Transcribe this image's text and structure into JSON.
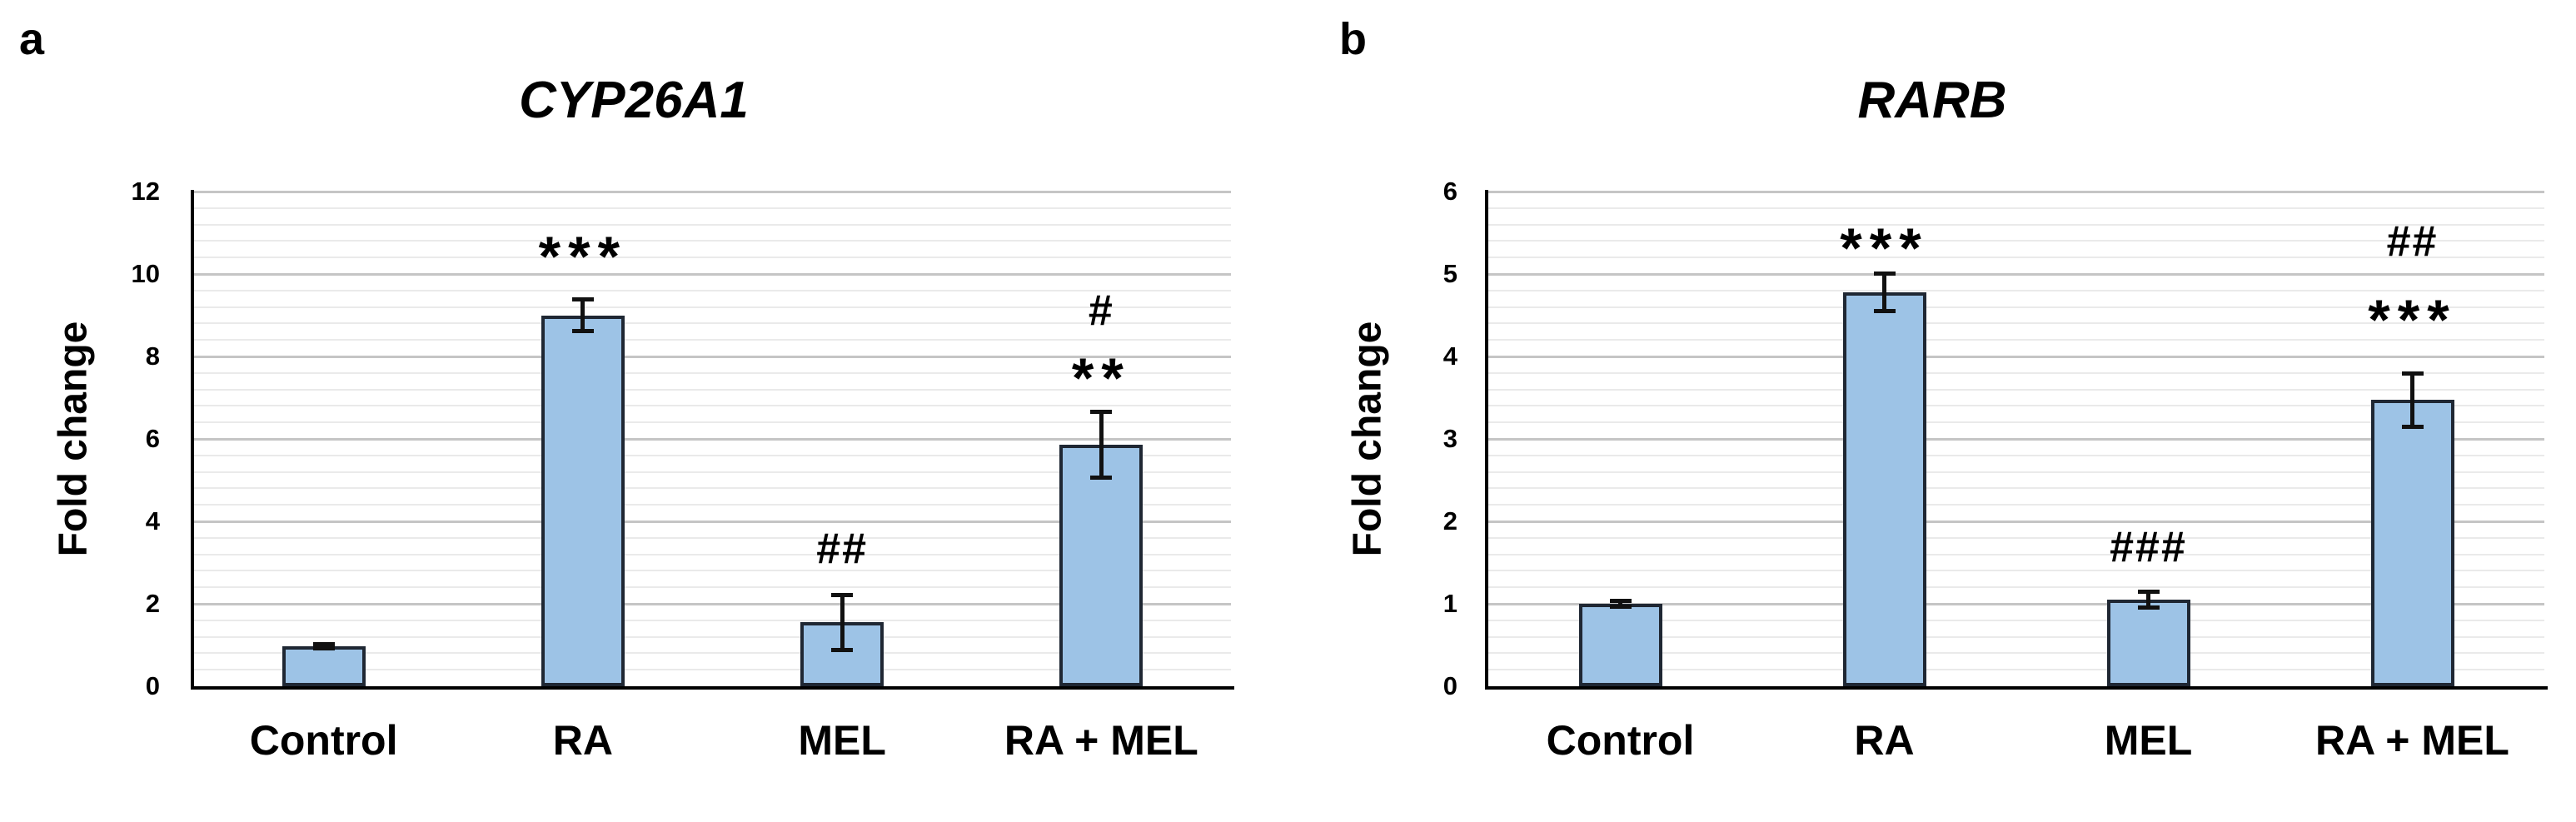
{
  "chart_data": [
    {
      "type": "bar",
      "panel_label": "a",
      "title": "CYP26A1",
      "ylabel": "Fold change",
      "ylim": [
        0,
        12
      ],
      "ytick_interval": 2,
      "yminor_interval": 0.4,
      "yticks": [
        0,
        2,
        4,
        6,
        8,
        10,
        12
      ],
      "grid": "horizontal major and minor, no legend",
      "categories": [
        "Control",
        "RA",
        "MEL",
        "RA + MEL"
      ],
      "values": [
        0.97,
        9.0,
        1.55,
        5.86
      ],
      "errors": [
        0.07,
        0.4,
        0.68,
        0.8
      ],
      "annotations": [
        {
          "category": "RA",
          "text": "***",
          "at_value": 10.65
        },
        {
          "category": "MEL",
          "text": "##",
          "at_value": 3.37
        },
        {
          "category": "RA + MEL",
          "text": "#",
          "at_value": 9.15
        },
        {
          "category": "RA + MEL",
          "text": "**",
          "at_value": 7.7
        }
      ]
    },
    {
      "type": "bar",
      "panel_label": "b",
      "title": "RARB",
      "ylabel": "Fold change",
      "ylim": [
        0,
        6
      ],
      "ytick_interval": 1,
      "yminor_interval": 0.2,
      "yticks": [
        0,
        1,
        2,
        3,
        4,
        5,
        6
      ],
      "grid": "horizontal major and minor, no legend",
      "categories": [
        "Control",
        "RA",
        "MEL",
        "RA + MEL"
      ],
      "values": [
        1.0,
        4.78,
        1.05,
        3.47
      ],
      "errors": [
        0.04,
        0.23,
        0.1,
        0.33
      ],
      "annotations": [
        {
          "category": "RA",
          "text": "***",
          "at_value": 5.42
        },
        {
          "category": "MEL",
          "text": "###",
          "at_value": 1.71
        },
        {
          "category": "RA + MEL",
          "text": "##",
          "at_value": 5.41
        },
        {
          "category": "RA + MEL",
          "text": "***",
          "at_value": 4.56
        }
      ]
    }
  ],
  "colors": {
    "bar_fill": "#9DC3E6",
    "bar_border": "#1F2733",
    "axis": "#000000",
    "grid_major": "#C5C5C5",
    "grid_minor": "#EAEAEA",
    "error_bar": "#111111",
    "text": "#000000",
    "background": "#FFFFFF"
  }
}
